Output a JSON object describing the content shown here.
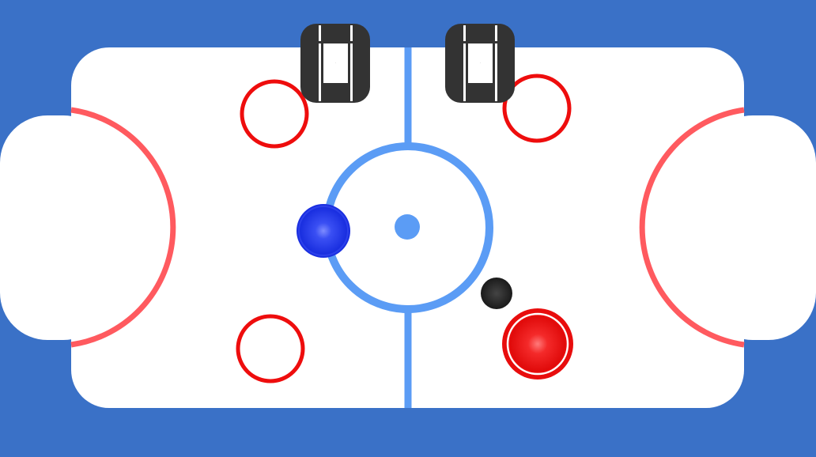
{
  "game": {
    "name": "air-hockey",
    "score": {
      "left": "0",
      "right": "0"
    },
    "colors": {
      "background": "#3a71c7",
      "rink": "#ffffff",
      "center_line": "#5b9cf5",
      "goal_arc": "#ff5a5f",
      "faceoff_circle": "#ee0d0d",
      "score_digit": "#333333",
      "blue_mallet": "#1a2fe0",
      "red_mallet": "#e80d0d",
      "puck": "#1f1f1f"
    },
    "pieces": {
      "blue_mallet": {
        "label": "blue-player-mallet"
      },
      "red_mallet": {
        "label": "red-player-mallet"
      },
      "puck": {
        "label": "puck"
      }
    }
  }
}
